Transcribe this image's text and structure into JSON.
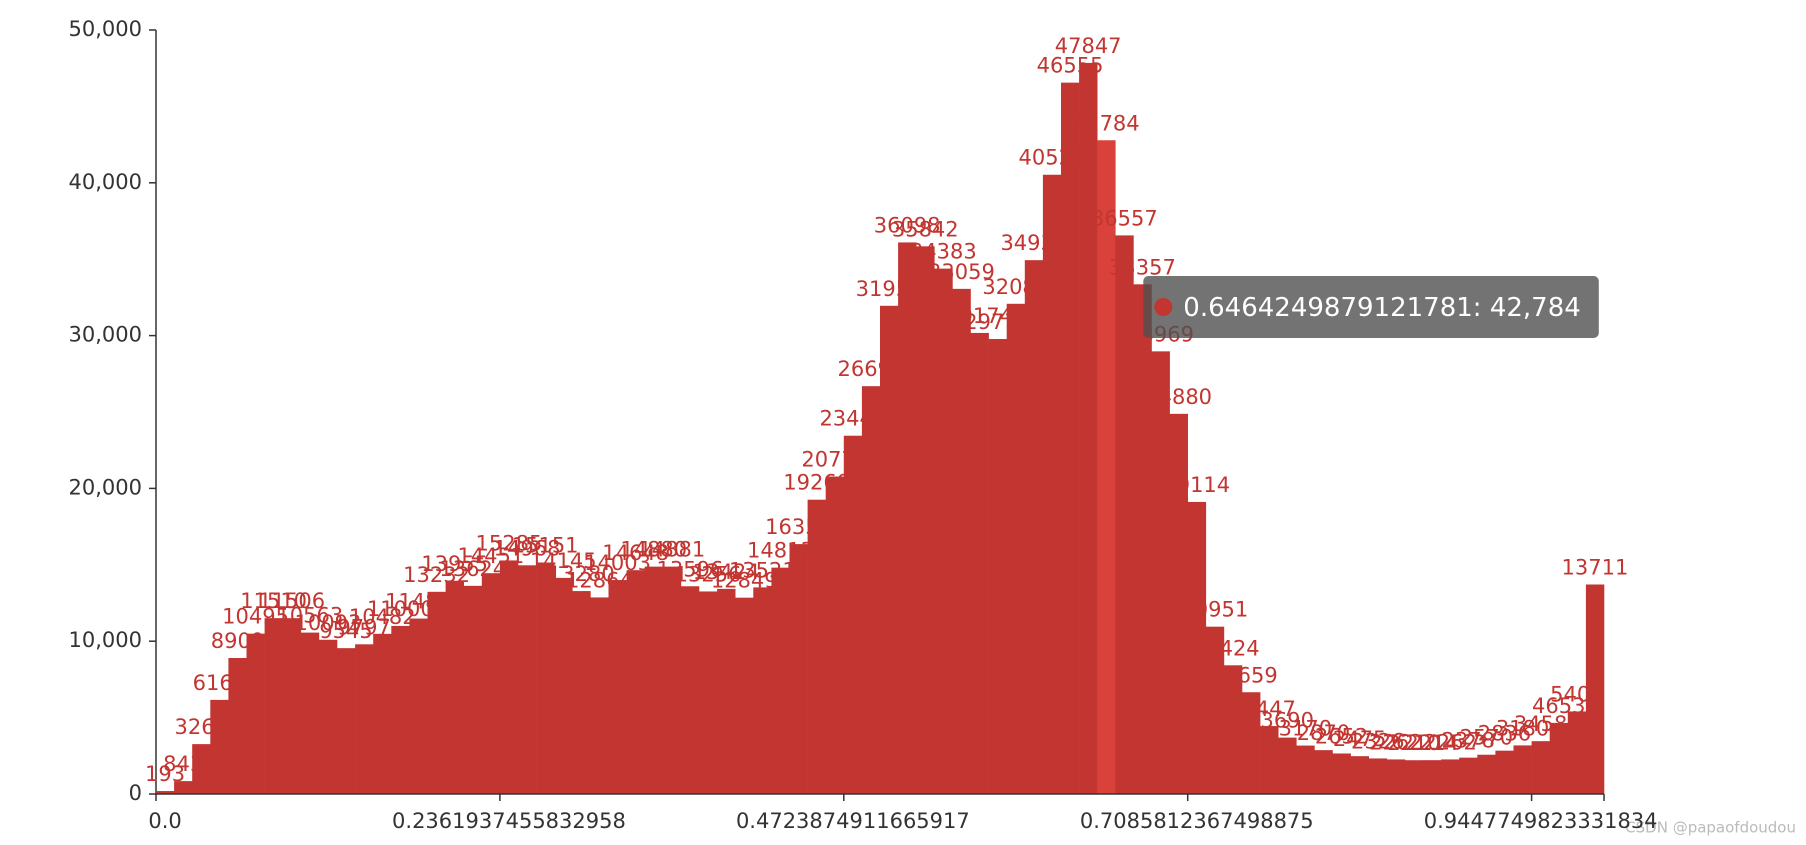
{
  "chart_data": {
    "type": "bar",
    "categories": [
      "0.0",
      null,
      null,
      null,
      null,
      null,
      null,
      null,
      null,
      null,
      null,
      null,
      null,
      null,
      null,
      null,
      null,
      null,
      null,
      "0.2361937455832958",
      null,
      null,
      null,
      null,
      null,
      null,
      null,
      null,
      null,
      null,
      null,
      null,
      null,
      null,
      null,
      null,
      null,
      null,
      "0.4723874911665917",
      null,
      null,
      null,
      null,
      null,
      null,
      null,
      null,
      null,
      null,
      null,
      null,
      null,
      null,
      null,
      null,
      null,
      null,
      "0.7085812367498875",
      null,
      null,
      null,
      null,
      null,
      null,
      null,
      null,
      null,
      null,
      null,
      null,
      null,
      null,
      null,
      null,
      null,
      null,
      "0.9447749823331834",
      null,
      null,
      null
    ],
    "values": [
      193,
      843,
      3264,
      6160,
      8900,
      10495,
      11510,
      11506,
      10563,
      10093,
      9545,
      9797,
      10482,
      11000,
      11482,
      13232,
      13955,
      13624,
      14451,
      15285,
      14968,
      15151,
      14145,
      13280,
      12864,
      14003,
      14648,
      14880,
      14881,
      13596,
      13256,
      13424,
      12849,
      13521,
      14813,
      16355,
      19260,
      20776,
      23448,
      26690,
      31950,
      36098,
      35842,
      34383,
      33059,
      30174,
      29776,
      32082,
      34937,
      40527,
      46555,
      47847,
      42784,
      36557,
      33357,
      28969,
      24880,
      19114,
      10951,
      8424,
      6659,
      4447,
      3690,
      3170,
      2870,
      2652,
      2475,
      2326,
      2262,
      2210,
      2214,
      2262,
      2378,
      2570,
      2836,
      3180,
      3458,
      4653,
      5403,
      13711
    ],
    "color": "#c23531",
    "highlight_color": "#d9423b",
    "ylim": [
      0,
      50000
    ],
    "yticks": [
      0,
      {
        "value": 10000,
        "label": "10,000"
      },
      {
        "value": 20000,
        "label": "20,000"
      },
      {
        "value": 30000,
        "label": "30,000"
      },
      {
        "value": 40000,
        "label": "40,000"
      },
      {
        "value": 50000,
        "label": "50,000"
      }
    ],
    "tooltip": {
      "category": "0.6464249879121781",
      "value_label": "42,784"
    }
  },
  "watermark": "CSDN @papaofdoudou"
}
